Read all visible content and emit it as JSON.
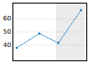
{
  "chart_data": {
    "type": "line",
    "x": [
      2004,
      2010,
      2015,
      2021
    ],
    "values": [
      37.9,
      48.8,
      41.6,
      66.7
    ],
    "color": "#1a7abf",
    "marker": "circle",
    "line_style": "dotted",
    "xlim": [
      2003,
      2022.5
    ],
    "ylim": [
      28,
      72
    ],
    "yticks": [
      40,
      50,
      60
    ],
    "grid": true,
    "tick_labels": "y",
    "shaded_region": {
      "x": [
        2014.5,
        2022
      ],
      "color": "#ebebeb"
    }
  }
}
